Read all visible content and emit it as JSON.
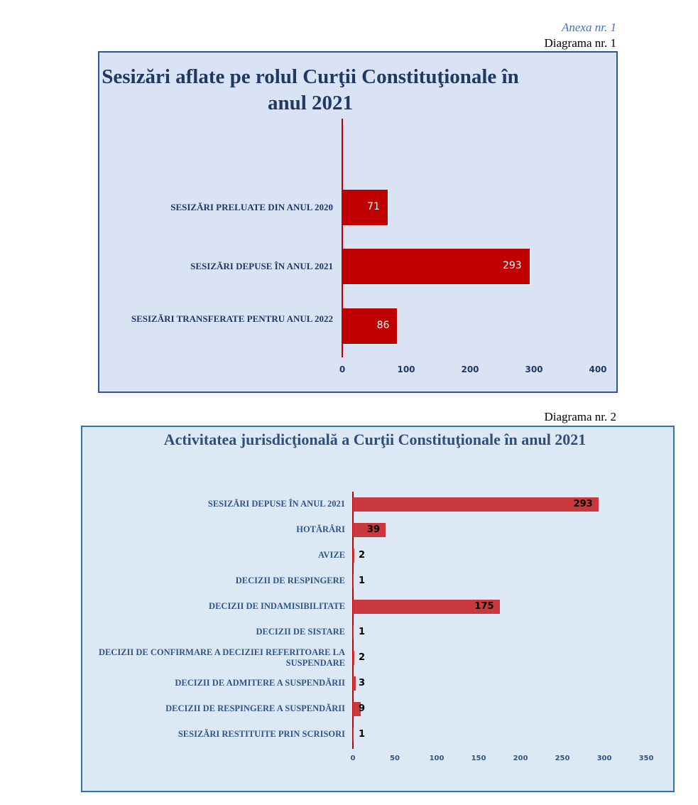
{
  "header": {
    "annex": "Anexa nr. 1",
    "diagram1": "Diagrama nr. 1",
    "diagram2": "Diagrama nr. 2"
  },
  "colors": {
    "bar1": "#c00000",
    "bar2": "#c9383c",
    "axis": "#c00000",
    "bg1": "#dae3f3",
    "bg2": "#dde8f5"
  },
  "chart_data": [
    {
      "type": "bar",
      "orientation": "horizontal",
      "title": "Sesizări aflate pe rolul Curţii Constituţionale în anul 2021",
      "categories": [
        "SESIZĂRI PRELUATE DIN ANUL 2020",
        "SESIZĂRI DEPUSE ÎN ANUL 2021",
        "SESIZĂRI TRANSFERATE PENTRU ANUL 2022"
      ],
      "values": [
        71,
        293,
        86
      ],
      "xlim": [
        0,
        400
      ],
      "ticks": [
        "0",
        "100",
        "200",
        "300",
        "400"
      ],
      "grid": false
    },
    {
      "type": "bar",
      "orientation": "horizontal",
      "title": "Activitatea jurisdicţională a Curţii Constituţionale în anul 2021",
      "categories": [
        "SESIZĂRI DEPUSE ÎN ANUL 2021",
        "HOTĂRÂRI",
        "AVIZE",
        "DECIZII DE RESPINGERE",
        "DECIZII DE INDAMISIBILITATE",
        "DECIZII DE SISTARE",
        "DECIZII DE CONFIRMARE A DECIZIEI REFERITOARE LA SUSPENDARE",
        "DECIZII DE ADMITERE A SUSPENDĂRII",
        "DECIZII DE RESPINGERE A SUSPENDĂRII",
        "SESIZĂRI RESTITUITE PRIN SCRISORI"
      ],
      "values": [
        293,
        39,
        2,
        1,
        175,
        1,
        2,
        3,
        9,
        1
      ],
      "xlim": [
        0,
        350
      ],
      "ticks": [
        "0",
        "50",
        "100",
        "150",
        "200",
        "250",
        "300",
        "350"
      ],
      "grid": false
    }
  ]
}
